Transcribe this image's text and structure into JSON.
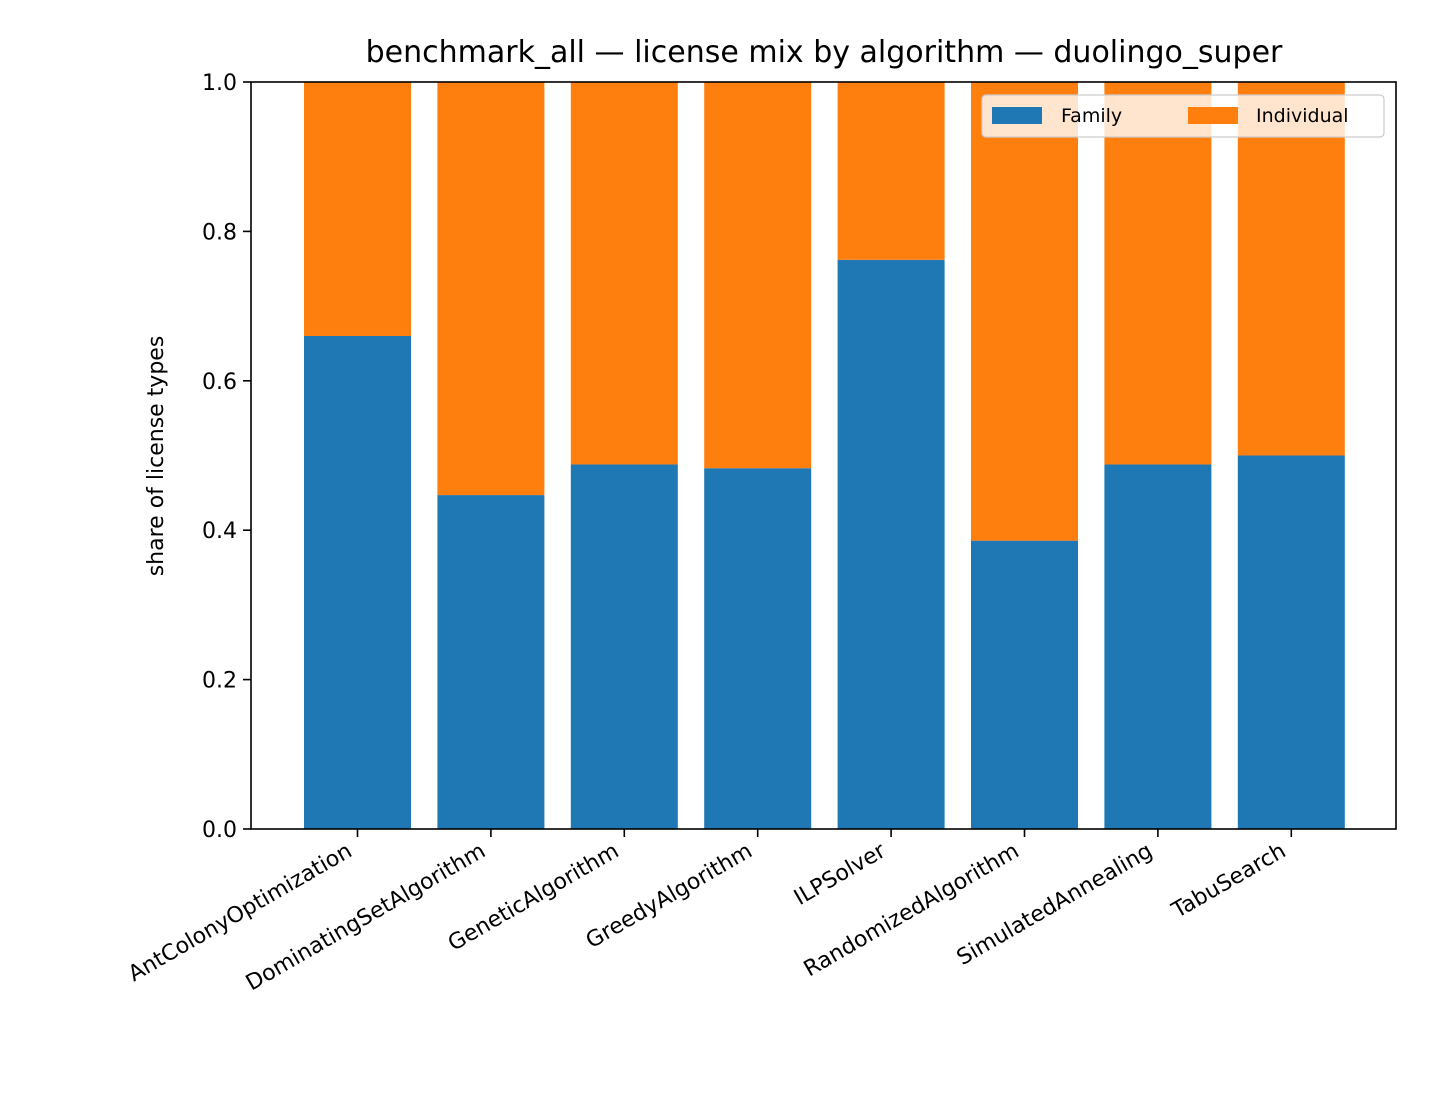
{
  "chart_data": {
    "type": "bar",
    "stacked": true,
    "title": "benchmark_all — license mix by algorithm — duolingo_super",
    "xlabel": "",
    "ylabel": "share of license types",
    "ylim": [
      0,
      1.0
    ],
    "yticks": [
      "0.0",
      "0.2",
      "0.4",
      "0.6",
      "0.8",
      "1.0"
    ],
    "categories": [
      "AntColonyOptimization",
      "DominatingSetAlgorithm",
      "GeneticAlgorithm",
      "GreedyAlgorithm",
      "ILPSolver",
      "RandomizedAlgorithm",
      "SimulatedAnnealing",
      "TabuSearch"
    ],
    "series": [
      {
        "name": "Family",
        "color": "#1f77b4",
        "values": [
          0.66,
          0.447,
          0.488,
          0.483,
          0.762,
          0.386,
          0.488,
          0.5
        ]
      },
      {
        "name": "Individual",
        "color": "#ff7f0e",
        "values": [
          0.34,
          0.553,
          0.512,
          0.517,
          0.238,
          0.614,
          0.512,
          0.5
        ]
      }
    ],
    "grid": false,
    "legend_position": "top-right"
  }
}
